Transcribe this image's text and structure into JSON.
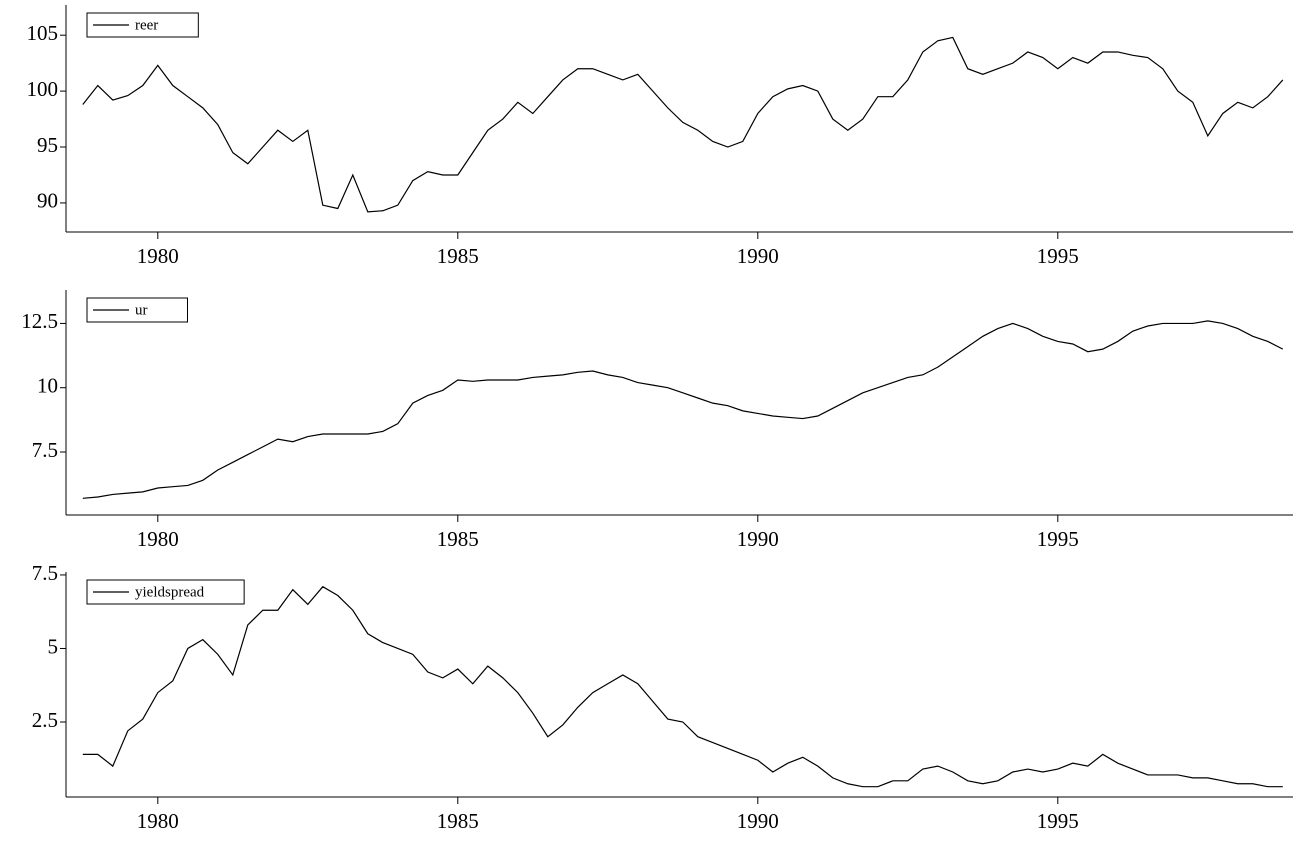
{
  "chart_data": [
    {
      "type": "line",
      "x": [
        1978.75,
        1979,
        1979.25,
        1979.5,
        1979.75,
        1980,
        1980.25,
        1980.5,
        1980.75,
        1981,
        1981.25,
        1981.5,
        1981.75,
        1982,
        1982.25,
        1982.5,
        1982.75,
        1983,
        1983.25,
        1983.5,
        1983.75,
        1984,
        1984.25,
        1984.5,
        1984.75,
        1985,
        1985.25,
        1985.5,
        1985.75,
        1986,
        1986.25,
        1986.5,
        1986.75,
        1987,
        1987.25,
        1987.5,
        1987.75,
        1988,
        1988.25,
        1988.5,
        1988.75,
        1989,
        1989.25,
        1989.5,
        1989.75,
        1990,
        1990.25,
        1990.5,
        1990.75,
        1991,
        1991.25,
        1991.5,
        1991.75,
        1992,
        1992.25,
        1992.5,
        1992.75,
        1993,
        1993.25,
        1993.5,
        1993.75,
        1994,
        1994.25,
        1994.5,
        1994.75,
        1995,
        1995.25,
        1995.5,
        1995.75,
        1996,
        1996.25,
        1996.5,
        1996.75,
        1997,
        1997.25,
        1997.5,
        1997.75,
        1998,
        1998.25,
        1998.5,
        1998.75
      ],
      "series": [
        {
          "name": "reer",
          "color": "#000000",
          "values": [
            98.8,
            100.5,
            99.2,
            99.6,
            100.5,
            102.3,
            100.5,
            99.5,
            98.5,
            97,
            94.5,
            93.5,
            95,
            96.5,
            95.5,
            96.5,
            89.8,
            89.5,
            92.5,
            89.2,
            89.3,
            89.8,
            92,
            92.8,
            92.5,
            92.5,
            94.5,
            96.5,
            97.5,
            99,
            98,
            99.5,
            101,
            102,
            102,
            101.5,
            101,
            101.5,
            100,
            98.5,
            97.2,
            96.5,
            95.5,
            95,
            95.5,
            98,
            99.5,
            100.2,
            100.5,
            100,
            97.5,
            96.5,
            97.5,
            99.5,
            99.5,
            101,
            103.5,
            104.5,
            104.8,
            102,
            101.5,
            102,
            102.5,
            103.5,
            103,
            102,
            103,
            102.5,
            103.5,
            103.5,
            103.2,
            103,
            102,
            100,
            99,
            96,
            98,
            99,
            98.5,
            99.5,
            101
          ]
        }
      ],
      "xlim": [
        1978.47,
        1998.92
      ],
      "xticks": [
        1980,
        1985,
        1990,
        1995
      ],
      "ylim": [
        87.4,
        107.7
      ],
      "yticks": [
        90,
        95,
        100,
        105
      ],
      "legend": "upper-left"
    },
    {
      "type": "line",
      "x": [
        1978.75,
        1979,
        1979.25,
        1979.5,
        1979.75,
        1980,
        1980.25,
        1980.5,
        1980.75,
        1981,
        1981.25,
        1981.5,
        1981.75,
        1982,
        1982.25,
        1982.5,
        1982.75,
        1983,
        1983.25,
        1983.5,
        1983.75,
        1984,
        1984.25,
        1984.5,
        1984.75,
        1985,
        1985.25,
        1985.5,
        1985.75,
        1986,
        1986.25,
        1986.5,
        1986.75,
        1987,
        1987.25,
        1987.5,
        1987.75,
        1988,
        1988.25,
        1988.5,
        1988.75,
        1989,
        1989.25,
        1989.5,
        1989.75,
        1990,
        1990.25,
        1990.5,
        1990.75,
        1991,
        1991.25,
        1991.5,
        1991.75,
        1992,
        1992.25,
        1992.5,
        1992.75,
        1993,
        1993.25,
        1993.5,
        1993.75,
        1994,
        1994.25,
        1994.5,
        1994.75,
        1995,
        1995.25,
        1995.5,
        1995.75,
        1996,
        1996.25,
        1996.5,
        1996.75,
        1997,
        1997.25,
        1997.5,
        1997.75,
        1998,
        1998.25,
        1998.5,
        1998.75
      ],
      "series": [
        {
          "name": "ur",
          "color": "#000000",
          "values": [
            5.7,
            5.75,
            5.85,
            5.9,
            5.95,
            6.1,
            6.15,
            6.2,
            6.4,
            6.8,
            7.1,
            7.4,
            7.7,
            8.0,
            7.9,
            8.1,
            8.2,
            8.2,
            8.2,
            8.2,
            8.3,
            8.6,
            9.4,
            9.7,
            9.9,
            10.3,
            10.25,
            10.3,
            10.3,
            10.3,
            10.4,
            10.45,
            10.5,
            10.6,
            10.65,
            10.5,
            10.4,
            10.2,
            10.1,
            10.0,
            9.8,
            9.6,
            9.4,
            9.3,
            9.1,
            9.0,
            8.9,
            8.85,
            8.8,
            8.9,
            9.2,
            9.5,
            9.8,
            10.0,
            10.2,
            10.4,
            10.5,
            10.8,
            11.2,
            11.6,
            12.0,
            12.3,
            12.5,
            12.3,
            12.0,
            11.8,
            11.7,
            11.4,
            11.5,
            11.8,
            12.2,
            12.4,
            12.5,
            12.5,
            12.5,
            12.6,
            12.5,
            12.3,
            12.0,
            11.8,
            11.5
          ]
        }
      ],
      "xlim": [
        1978.47,
        1998.92
      ],
      "xticks": [
        1980,
        1985,
        1990,
        1995
      ],
      "ylim": [
        5.05,
        13.8
      ],
      "yticks": [
        7.5,
        10,
        12.5
      ],
      "legend": "upper-left"
    },
    {
      "type": "line",
      "x": [
        1978.75,
        1979,
        1979.25,
        1979.5,
        1979.75,
        1980,
        1980.25,
        1980.5,
        1980.75,
        1981,
        1981.25,
        1981.5,
        1981.75,
        1982,
        1982.25,
        1982.5,
        1982.75,
        1983,
        1983.25,
        1983.5,
        1983.75,
        1984,
        1984.25,
        1984.5,
        1984.75,
        1985,
        1985.25,
        1985.5,
        1985.75,
        1986,
        1986.25,
        1986.5,
        1986.75,
        1987,
        1987.25,
        1987.5,
        1987.75,
        1988,
        1988.25,
        1988.5,
        1988.75,
        1989,
        1989.25,
        1989.5,
        1989.75,
        1990,
        1990.25,
        1990.5,
        1990.75,
        1991,
        1991.25,
        1991.5,
        1991.75,
        1992,
        1992.25,
        1992.5,
        1992.75,
        1993,
        1993.25,
        1993.5,
        1993.75,
        1994,
        1994.25,
        1994.5,
        1994.75,
        1995,
        1995.25,
        1995.5,
        1995.75,
        1996,
        1996.25,
        1996.5,
        1996.75,
        1997,
        1997.25,
        1997.5,
        1997.75,
        1998,
        1998.25,
        1998.5,
        1998.75
      ],
      "series": [
        {
          "name": "yieldspread",
          "color": "#000000",
          "values": [
            1.4,
            1.4,
            1.0,
            2.2,
            2.6,
            3.5,
            3.9,
            5.0,
            5.3,
            4.8,
            4.1,
            5.8,
            6.3,
            6.3,
            7.0,
            6.5,
            7.1,
            6.8,
            6.3,
            5.5,
            5.2,
            5.0,
            4.8,
            4.2,
            4.0,
            4.3,
            3.8,
            4.4,
            4.0,
            3.5,
            2.8,
            2.0,
            2.4,
            3.0,
            3.5,
            3.8,
            4.1,
            3.8,
            3.2,
            2.6,
            2.5,
            2.0,
            1.8,
            1.6,
            1.4,
            1.2,
            0.8,
            1.1,
            1.3,
            1.0,
            0.6,
            0.4,
            0.3,
            0.3,
            0.5,
            0.5,
            0.9,
            1.0,
            0.8,
            0.5,
            0.4,
            0.5,
            0.8,
            0.9,
            0.8,
            0.9,
            1.1,
            1.0,
            1.4,
            1.1,
            0.9,
            0.7,
            0.7,
            0.7,
            0.6,
            0.6,
            0.5,
            0.4,
            0.4,
            0.3,
            0.3
          ]
        }
      ],
      "xlim": [
        1978.47,
        1998.92
      ],
      "xticks": [
        1980,
        1985,
        1990,
        1995
      ],
      "ylim": [
        -0.05,
        7.6
      ],
      "yticks": [
        2.5,
        5,
        7.5
      ],
      "legend": "upper-left"
    }
  ]
}
